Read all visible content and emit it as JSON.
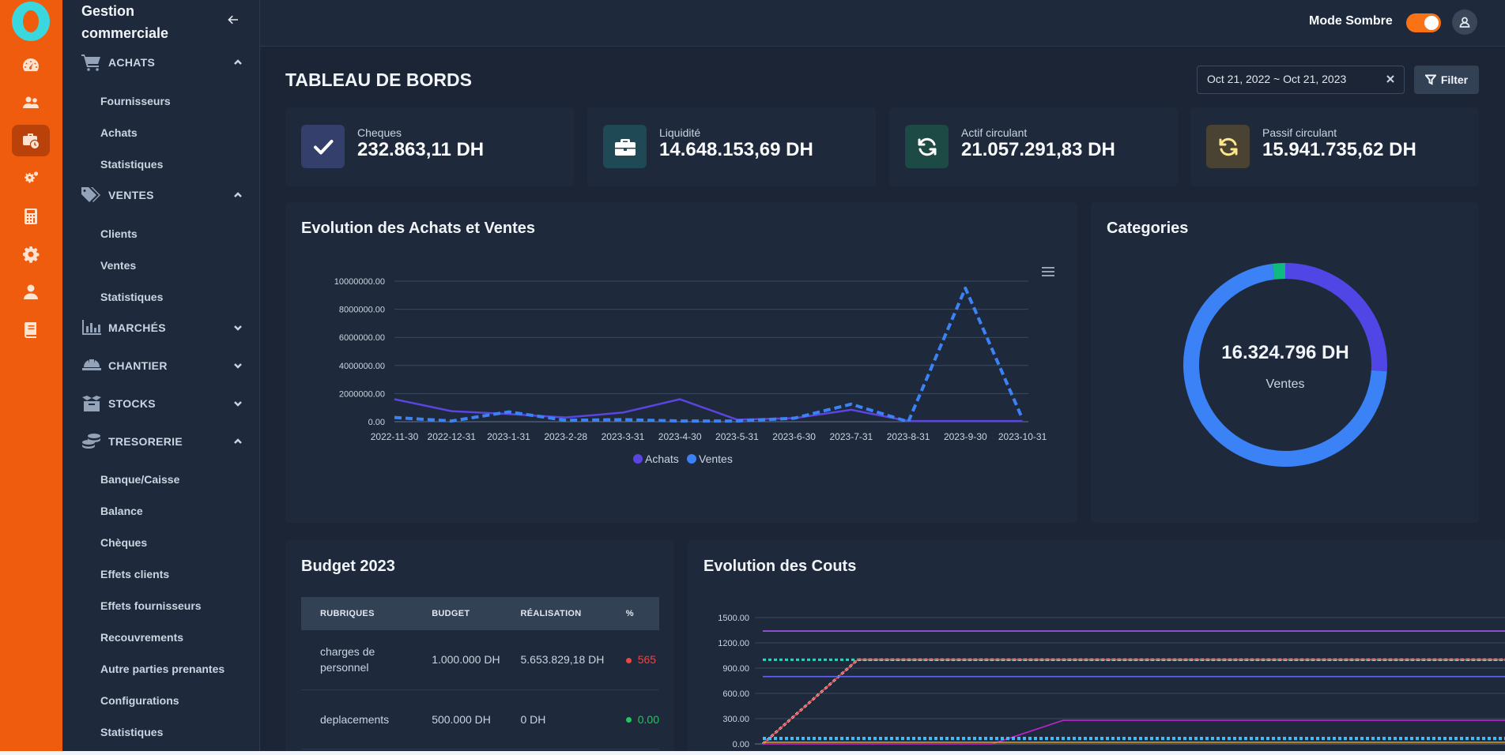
{
  "app": {
    "brand": "Gestion commerciale"
  },
  "rail": {
    "icons": [
      "dashboard-icon",
      "users-icon",
      "briefcase-clock-icon",
      "gears-icon",
      "calculator-icon",
      "settings-icon",
      "user-icon",
      "book-icon"
    ],
    "active_index": 2
  },
  "sidebar": {
    "sections": [
      {
        "label": "ACHATS",
        "icon": "cart-icon",
        "expanded": true,
        "items": [
          "Fournisseurs",
          "Achats",
          "Statistiques"
        ]
      },
      {
        "label": "VENTES",
        "icon": "tags-icon",
        "expanded": true,
        "items": [
          "Clients",
          "Ventes",
          "Statistiques"
        ]
      },
      {
        "label": "MARCHÉS",
        "icon": "bar-chart-icon",
        "expanded": false,
        "items": []
      },
      {
        "label": "CHANTIER",
        "icon": "helmet-icon",
        "expanded": false,
        "items": []
      },
      {
        "label": "STOCKS",
        "icon": "boxes-icon",
        "expanded": false,
        "items": []
      },
      {
        "label": "TRESORERIE",
        "icon": "coins-icon",
        "expanded": true,
        "items": [
          "Banque/Caisse",
          "Balance",
          "Chèques",
          "Effets clients",
          "Effets fournisseurs",
          "Recouvrements",
          "Autre parties prenantes",
          "Configurations",
          "Statistiques"
        ]
      }
    ]
  },
  "topbar": {
    "mode_label": "Mode Sombre",
    "dark_mode": true
  },
  "page": {
    "title": "TABLEAU DE BORDS",
    "date_range": "Oct 21, 2022 ~ Oct 21, 2023",
    "filter_label": "Filter"
  },
  "stats": [
    {
      "label": "Cheques",
      "value": "232.863,11 DH",
      "icon": "check-icon",
      "color": "#353f6b"
    },
    {
      "label": "Liquidité",
      "value": "14.648.153,69 DH",
      "icon": "briefcase-icon",
      "color": "#1f4a55"
    },
    {
      "label": "Actif circulant",
      "value": "21.057.291,83 DH",
      "icon": "refresh-icon",
      "color": "#1e4a45"
    },
    {
      "label": "Passif circulant",
      "value": "15.941.735,62 DH",
      "icon": "refresh-icon",
      "color": "#4a4232"
    }
  ],
  "evolution_card": {
    "title": "Evolution des Achats et Ventes"
  },
  "categories_card": {
    "title": "Categories",
    "center_value": "16.324.796 DH",
    "center_label": "Ventes"
  },
  "budget": {
    "title": "Budget 2023",
    "headers": [
      "RUBRIQUES",
      "BUDGET",
      "RÉALISATION",
      "%"
    ],
    "rows": [
      {
        "rubrique": "charges de personnel",
        "budget": "1.000.000 DH",
        "realisation": "5.653.829,18 DH",
        "pct": "565",
        "status_color": "#ef4444"
      },
      {
        "rubrique": "deplacements",
        "budget": "500.000 DH",
        "realisation": "0 DH",
        "pct": "0.00",
        "status_color": "#22c55e"
      }
    ]
  },
  "couts_card": {
    "title": "Evolution des Couts"
  },
  "chart_data": [
    {
      "type": "line",
      "title": "Evolution des Achats et Ventes",
      "x": [
        "2022-11-30",
        "2022-12-31",
        "2023-1-31",
        "2023-2-28",
        "2023-3-31",
        "2023-4-30",
        "2023-5-31",
        "2023-6-30",
        "2023-7-31",
        "2023-8-31",
        "2023-9-30",
        "2023-10-31"
      ],
      "ylim": [
        0,
        10000000
      ],
      "yticks": [
        "0.00",
        "2000000.00",
        "4000000.00",
        "6000000.00",
        "8000000.00",
        "10000000.00"
      ],
      "series": [
        {
          "name": "Achats",
          "color": "#5b45e0",
          "dash": false,
          "values": [
            1600000,
            750000,
            550000,
            300000,
            650000,
            1600000,
            150000,
            250000,
            850000,
            50000,
            50000,
            50000
          ]
        },
        {
          "name": "Ventes",
          "color": "#3b82f6",
          "dash": true,
          "values": [
            300000,
            50000,
            700000,
            100000,
            150000,
            50000,
            50000,
            250000,
            1250000,
            0,
            9500000,
            200000
          ]
        }
      ],
      "legend": "bottom",
      "grid": true
    },
    {
      "type": "pie",
      "title": "Categories",
      "donut": true,
      "slices": [
        {
          "value": 72,
          "color": "#3b82f6"
        },
        {
          "value": 26,
          "color": "#4f46e5"
        },
        {
          "value": 2,
          "color": "#10b981"
        }
      ]
    },
    {
      "type": "line",
      "title": "Evolution des Couts",
      "ylim": [
        0,
        1500
      ],
      "yticks": [
        "0.00",
        "300.00",
        "600.00",
        "900.00",
        "1200.00",
        "1500.00"
      ],
      "series": [
        {
          "color": "#a855f7",
          "dash": false,
          "values": [
            1340,
            1340,
            1340,
            1340,
            1340,
            1340
          ]
        },
        {
          "color": "#2dd4bf",
          "dash": true,
          "values": [
            1000,
            1000,
            1000,
            1000,
            1000,
            1000
          ]
        },
        {
          "color": "#e5e7eb",
          "dash": true,
          "values": [
            0,
            1000,
            1000,
            1000,
            1000,
            1000
          ]
        },
        {
          "color": "#ef4444",
          "dash": false,
          "values": [
            0,
            1000,
            1000,
            1000,
            1000,
            1000
          ]
        },
        {
          "color": "#6366f1",
          "dash": false,
          "values": [
            800,
            800,
            800,
            800,
            800,
            800
          ]
        },
        {
          "color": "#c026d3",
          "dash": false,
          "values": [
            0,
            0,
            0,
            280,
            280,
            280
          ]
        },
        {
          "color": "#9ca3af",
          "dash": true,
          "values": [
            70,
            70,
            70,
            70,
            70,
            70
          ]
        },
        {
          "color": "#38bdf8",
          "dash": true,
          "values": [
            60,
            60,
            60,
            60,
            60,
            60
          ]
        },
        {
          "color": "#f59e0b",
          "dash": false,
          "values": [
            20,
            20,
            20,
            20,
            20,
            20
          ]
        }
      ]
    }
  ]
}
